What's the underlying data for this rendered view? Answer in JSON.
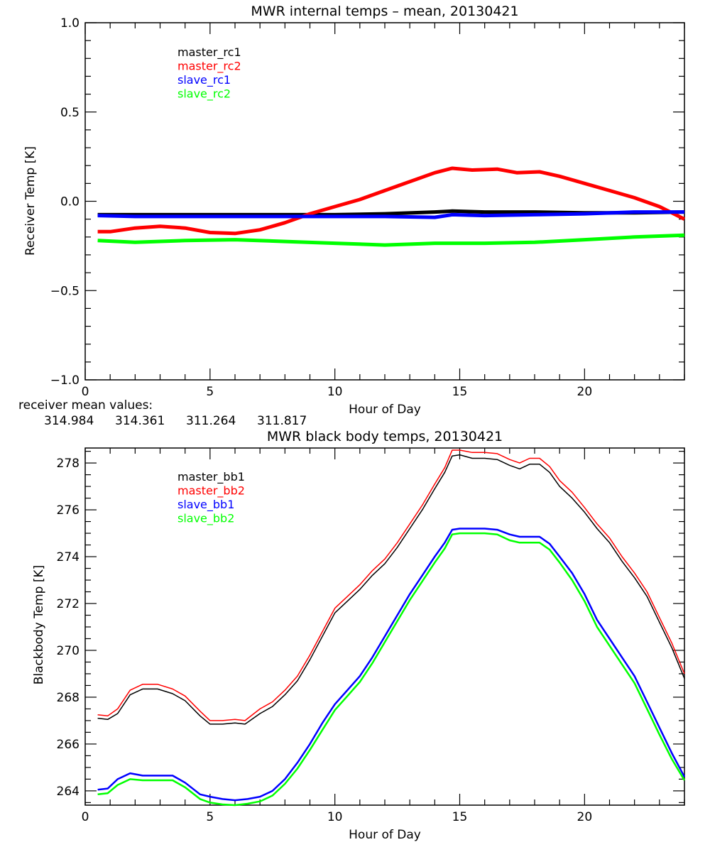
{
  "chart_data": [
    {
      "type": "line",
      "title": "MWR internal temps – mean, 20130421",
      "xlabel": "Hour of Day",
      "ylabel": "Receiver Temp [K]",
      "xlim": [
        0,
        24
      ],
      "ylim": [
        -1.0,
        1.0
      ],
      "x_ticks": [
        0,
        5,
        10,
        15,
        20
      ],
      "x_tick_labels": [
        "0",
        "5",
        "10",
        "15",
        "20"
      ],
      "y_ticks": [
        -1.0,
        -0.5,
        0.0,
        0.5,
        1.0
      ],
      "y_tick_labels": [
        "−1.0",
        "−0.5",
        "0.0",
        "0.5",
        "1.0"
      ],
      "grid": false,
      "legend_position": "top-left",
      "series": [
        {
          "name": "master_rc1",
          "color": "#000000",
          "x": [
            0.5,
            2,
            4,
            6,
            8,
            10,
            12,
            14,
            14.7,
            16,
            18,
            20,
            22,
            24
          ],
          "y": [
            -0.075,
            -0.075,
            -0.075,
            -0.075,
            -0.075,
            -0.075,
            -0.07,
            -0.06,
            -0.055,
            -0.06,
            -0.06,
            -0.065,
            -0.065,
            -0.06
          ]
        },
        {
          "name": "master_rc2",
          "color": "#ff0000",
          "x": [
            0.5,
            1,
            2,
            3,
            4,
            5,
            6,
            7,
            8,
            9,
            10,
            11,
            12,
            13,
            14,
            14.7,
            15.5,
            16.5,
            17.3,
            18.2,
            19,
            20,
            21,
            22,
            23,
            24
          ],
          "y": [
            -0.17,
            -0.17,
            -0.15,
            -0.14,
            -0.15,
            -0.175,
            -0.18,
            -0.16,
            -0.12,
            -0.07,
            -0.03,
            0.01,
            0.06,
            0.11,
            0.16,
            0.185,
            0.175,
            0.18,
            0.16,
            0.165,
            0.14,
            0.1,
            0.06,
            0.02,
            -0.03,
            -0.1
          ]
        },
        {
          "name": "slave_rc1",
          "color": "#0000ff",
          "x": [
            0.5,
            2,
            4,
            6,
            8,
            10,
            12,
            14,
            14.7,
            16,
            18,
            20,
            22,
            24
          ],
          "y": [
            -0.08,
            -0.085,
            -0.085,
            -0.085,
            -0.085,
            -0.085,
            -0.085,
            -0.09,
            -0.075,
            -0.08,
            -0.075,
            -0.07,
            -0.06,
            -0.06
          ]
        },
        {
          "name": "slave_rc2",
          "color": "#00ff00",
          "x": [
            0.5,
            2,
            4,
            6,
            8,
            10,
            12,
            14,
            16,
            18,
            20,
            22,
            24
          ],
          "y": [
            -0.22,
            -0.23,
            -0.22,
            -0.215,
            -0.225,
            -0.235,
            -0.245,
            -0.235,
            -0.235,
            -0.23,
            -0.215,
            -0.2,
            -0.19
          ]
        }
      ]
    },
    {
      "type": "line",
      "title": "MWR black body temps, 20130421",
      "xlabel": "Hour of Day",
      "ylabel": "Blackbody Temp [K]",
      "xlim": [
        0,
        24
      ],
      "ylim": [
        263.39,
        278.64
      ],
      "x_ticks": [
        0,
        5,
        10,
        15,
        20
      ],
      "x_tick_labels": [
        "0",
        "5",
        "10",
        "15",
        "20"
      ],
      "y_ticks": [
        264,
        266,
        268,
        270,
        272,
        274,
        276,
        278
      ],
      "y_tick_labels": [
        "264",
        "266",
        "268",
        "270",
        "272",
        "274",
        "276",
        "278"
      ],
      "grid": false,
      "legend_position": "top-left",
      "series": [
        {
          "name": "master_bb1",
          "color": "#000000",
          "x": [
            0.5,
            0.9,
            1.3,
            1.8,
            2.3,
            2.9,
            3.5,
            4.0,
            4.6,
            5.0,
            5.5,
            6.0,
            6.4,
            7.0,
            7.5,
            8.0,
            8.5,
            9.0,
            9.5,
            10.0,
            10.5,
            11.0,
            11.5,
            12.0,
            12.5,
            13.0,
            13.5,
            14.0,
            14.4,
            14.7,
            15.0,
            15.5,
            16.0,
            16.5,
            17.0,
            17.4,
            17.8,
            18.2,
            18.6,
            19.0,
            19.5,
            20.0,
            20.5,
            21.0,
            21.5,
            22.0,
            22.5,
            23.0,
            23.5,
            24.0
          ],
          "y": [
            267.1,
            267.05,
            267.3,
            268.1,
            268.35,
            268.35,
            268.15,
            267.85,
            267.2,
            266.85,
            266.85,
            266.9,
            266.85,
            267.3,
            267.6,
            268.1,
            268.7,
            269.6,
            270.6,
            271.6,
            272.1,
            272.6,
            273.2,
            273.7,
            274.4,
            275.2,
            276.0,
            276.9,
            277.6,
            278.3,
            278.35,
            278.2,
            278.2,
            278.15,
            277.9,
            277.75,
            277.95,
            277.95,
            277.6,
            277.0,
            276.5,
            275.9,
            275.2,
            274.6,
            273.8,
            273.1,
            272.3,
            271.2,
            270.1,
            268.8
          ]
        },
        {
          "name": "master_bb2",
          "color": "#ff0000",
          "x": [
            0.5,
            0.9,
            1.3,
            1.8,
            2.3,
            2.9,
            3.5,
            4.0,
            4.6,
            5.0,
            5.5,
            6.0,
            6.4,
            7.0,
            7.5,
            8.0,
            8.5,
            9.0,
            9.5,
            10.0,
            10.5,
            11.0,
            11.5,
            12.0,
            12.5,
            13.0,
            13.5,
            14.0,
            14.4,
            14.7,
            15.0,
            15.5,
            16.0,
            16.5,
            17.0,
            17.4,
            17.8,
            18.2,
            18.6,
            19.0,
            19.5,
            20.0,
            20.5,
            21.0,
            21.5,
            22.0,
            22.5,
            23.0,
            23.5,
            24.0
          ],
          "y": [
            267.25,
            267.2,
            267.5,
            268.3,
            268.55,
            268.55,
            268.35,
            268.05,
            267.4,
            267.0,
            267.0,
            267.05,
            267.0,
            267.5,
            267.8,
            268.3,
            268.9,
            269.8,
            270.8,
            271.8,
            272.3,
            272.8,
            273.4,
            273.9,
            274.6,
            275.4,
            276.2,
            277.1,
            277.8,
            278.55,
            278.55,
            278.45,
            278.45,
            278.4,
            278.15,
            278.0,
            278.2,
            278.2,
            277.85,
            277.25,
            276.75,
            276.1,
            275.4,
            274.8,
            274.0,
            273.3,
            272.5,
            271.4,
            270.3,
            269.0
          ]
        },
        {
          "name": "slave_bb1",
          "color": "#0000ff",
          "x": [
            0.5,
            0.9,
            1.3,
            1.8,
            2.3,
            2.9,
            3.5,
            4.0,
            4.6,
            5.0,
            5.5,
            6.0,
            6.5,
            7.0,
            7.5,
            8.0,
            8.5,
            9.0,
            9.5,
            10.0,
            10.5,
            11.0,
            11.5,
            12.0,
            12.5,
            13.0,
            13.5,
            14.0,
            14.4,
            14.7,
            15.0,
            15.5,
            16.0,
            16.5,
            17.0,
            17.4,
            17.8,
            18.2,
            18.6,
            19.0,
            19.5,
            20.0,
            20.5,
            21.0,
            21.5,
            22.0,
            22.5,
            23.0,
            23.5,
            24.0
          ],
          "y": [
            264.05,
            264.1,
            264.5,
            264.75,
            264.65,
            264.65,
            264.65,
            264.35,
            263.85,
            263.75,
            263.65,
            263.6,
            263.65,
            263.75,
            264.0,
            264.5,
            265.2,
            266.0,
            266.9,
            267.7,
            268.3,
            268.9,
            269.7,
            270.6,
            271.5,
            272.4,
            273.2,
            274.0,
            274.6,
            275.15,
            275.2,
            275.2,
            275.2,
            275.15,
            274.95,
            274.85,
            274.85,
            274.85,
            274.55,
            274.0,
            273.3,
            272.4,
            271.3,
            270.5,
            269.7,
            268.9,
            267.8,
            266.7,
            265.6,
            264.6
          ]
        },
        {
          "name": "slave_bb2",
          "color": "#00ff00",
          "x": [
            0.5,
            0.9,
            1.3,
            1.8,
            2.3,
            2.9,
            3.5,
            4.0,
            4.6,
            5.0,
            5.5,
            6.0,
            6.5,
            7.0,
            7.5,
            8.0,
            8.5,
            9.0,
            9.5,
            10.0,
            10.5,
            11.0,
            11.5,
            12.0,
            12.5,
            13.0,
            13.5,
            14.0,
            14.4,
            14.7,
            15.0,
            15.5,
            16.0,
            16.5,
            17.0,
            17.4,
            17.8,
            18.2,
            18.6,
            19.0,
            19.5,
            20.0,
            20.5,
            21.0,
            21.5,
            22.0,
            22.5,
            23.0,
            23.5,
            24.0
          ],
          "y": [
            263.85,
            263.9,
            264.25,
            264.5,
            264.45,
            264.45,
            264.45,
            264.15,
            263.65,
            263.5,
            263.42,
            263.39,
            263.45,
            263.55,
            263.8,
            264.3,
            264.95,
            265.75,
            266.6,
            267.45,
            268.05,
            268.65,
            269.45,
            270.35,
            271.25,
            272.15,
            272.95,
            273.75,
            274.35,
            274.95,
            275.0,
            275.0,
            275.0,
            274.95,
            274.7,
            274.6,
            274.6,
            274.6,
            274.3,
            273.75,
            273.0,
            272.1,
            271.0,
            270.2,
            269.4,
            268.6,
            267.5,
            266.4,
            265.35,
            264.45
          ]
        }
      ]
    }
  ],
  "annotations": {
    "receiver_mean_label": "receiver mean values:",
    "receiver_means": [
      {
        "value": "314.984",
        "color": "#000000"
      },
      {
        "value": "314.361",
        "color": "#ff0000"
      },
      {
        "value": "311.264",
        "color": "#0000ff"
      },
      {
        "value": "311.817",
        "color": "#00ff00"
      }
    ]
  }
}
